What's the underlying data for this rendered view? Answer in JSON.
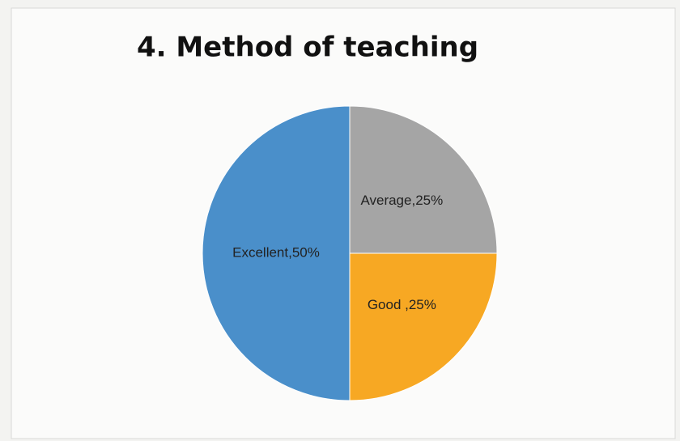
{
  "chart_data": {
    "type": "pie",
    "title": "4. Method of teaching",
    "categories": [
      "Average",
      "Good",
      "Excellent"
    ],
    "values": [
      25,
      25,
      50
    ],
    "value_labels": [
      "Average,25%",
      "Good ,25%",
      "Excellent,50%"
    ],
    "colors": [
      "#a5a5a5",
      "#f7a823",
      "#4a8fca"
    ]
  }
}
